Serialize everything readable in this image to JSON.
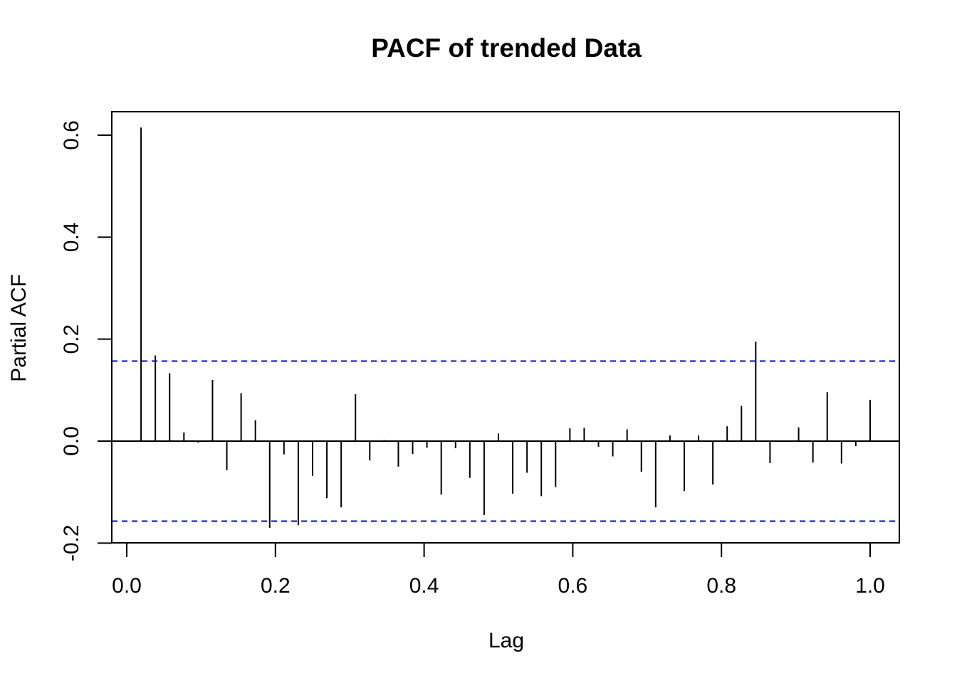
{
  "chart_data": {
    "type": "bar",
    "title": "PACF of trended Data",
    "xlabel": "Lag",
    "ylabel": "Partial ACF",
    "xlim": [
      -0.02,
      1.04
    ],
    "ylim": [
      -0.2,
      0.645
    ],
    "x_ticks": [
      {
        "value": 0.0,
        "label": "0.0"
      },
      {
        "value": 0.2,
        "label": "0.2"
      },
      {
        "value": 0.4,
        "label": "0.4"
      },
      {
        "value": 0.6,
        "label": "0.6"
      },
      {
        "value": 0.8,
        "label": "0.8"
      },
      {
        "value": 1.0,
        "label": "1.0"
      }
    ],
    "y_ticks": [
      {
        "value": -0.2,
        "label": "-0.2"
      },
      {
        "value": 0.0,
        "label": "0.0"
      },
      {
        "value": 0.2,
        "label": "0.2"
      },
      {
        "value": 0.4,
        "label": "0.4"
      },
      {
        "value": 0.6,
        "label": "0.6"
      }
    ],
    "confidence_bounds": [
      0.157,
      -0.157
    ],
    "bound_color": "#0000ff",
    "bar_color": "#000000",
    "lag_step": 0.01923,
    "series": [
      {
        "values": [
          0.615,
          0.168,
          0.133,
          0.017,
          -0.003,
          0.12,
          -0.057,
          0.094,
          0.041,
          -0.17,
          -0.026,
          -0.165,
          -0.068,
          -0.112,
          -0.13,
          0.092,
          -0.038,
          0.002,
          -0.05,
          -0.025,
          -0.013,
          -0.105,
          -0.014,
          -0.072,
          -0.145,
          0.015,
          -0.103,
          -0.062,
          -0.108,
          -0.09,
          0.025,
          0.026,
          -0.011,
          -0.03,
          0.023,
          -0.06,
          -0.13,
          0.011,
          -0.098,
          0.011,
          -0.085,
          0.029,
          0.069,
          0.195,
          -0.043,
          0.001,
          0.027,
          -0.042,
          0.096,
          -0.044,
          -0.01,
          0.081
        ]
      }
    ]
  }
}
